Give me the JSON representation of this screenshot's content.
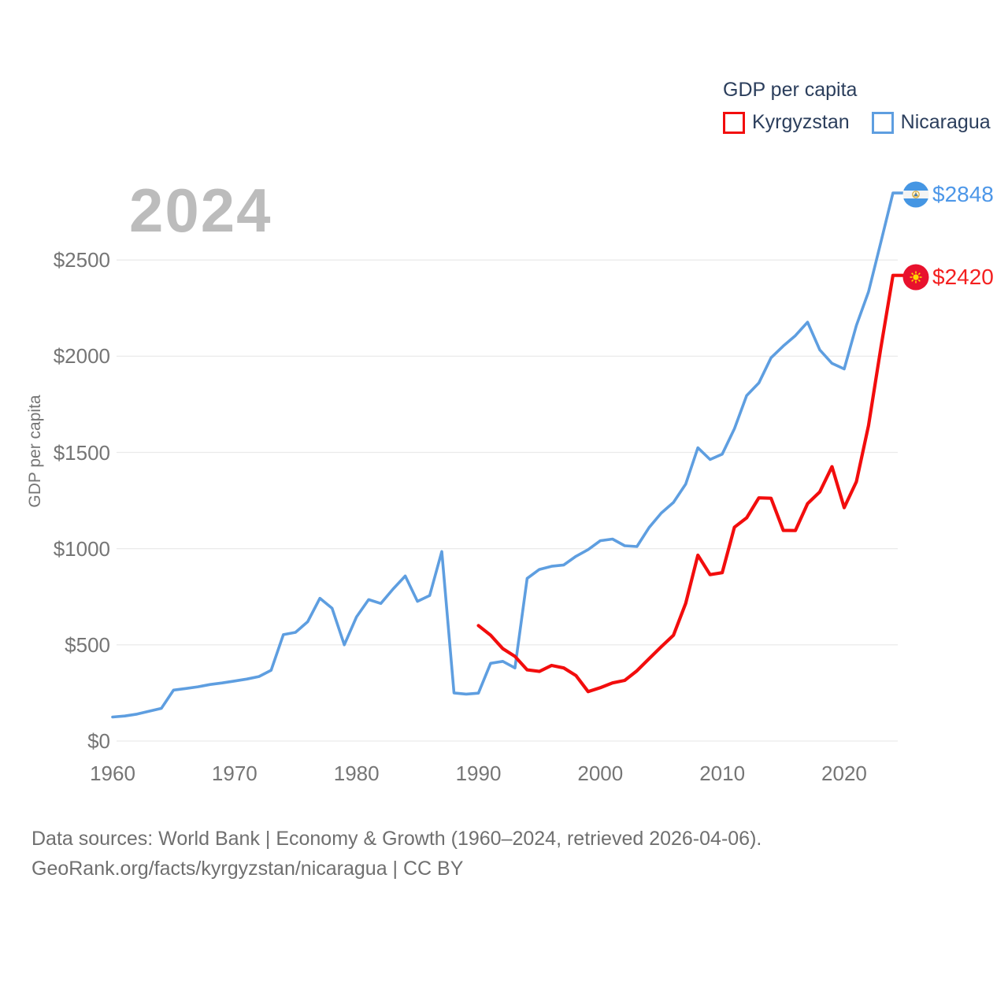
{
  "watermark_year": "2024",
  "legend": {
    "title": "GDP per capita",
    "series": [
      {
        "label": "Kyrgyzstan",
        "color": "#f20d0d"
      },
      {
        "label": "Nicaragua",
        "color": "#5e9ee0"
      }
    ]
  },
  "y_axis": {
    "title": "GDP per capita",
    "ticks": [
      "$0",
      "$500",
      "$1000",
      "$1500",
      "$2000",
      "$2500"
    ],
    "tick_values": [
      0,
      500,
      1000,
      1500,
      2000,
      2500
    ]
  },
  "x_axis": {
    "ticks": [
      "1960",
      "1970",
      "1980",
      "1990",
      "2000",
      "2010",
      "2020"
    ],
    "tick_values": [
      1960,
      1970,
      1980,
      1990,
      2000,
      2010,
      2020
    ]
  },
  "end_labels": [
    {
      "series": "Nicaragua",
      "value_label": "$2848",
      "flag": "nicaragua-flag",
      "color": "#4d97e8"
    },
    {
      "series": "Kyrgyzstan",
      "value_label": "$2420",
      "flag": "kyrgyzstan-flag",
      "color": "#f42020"
    }
  ],
  "footer": {
    "line1": "Data sources: World Bank | Economy & Growth (1960–2024, retrieved 2026-04-06).",
    "line2": "GeoRank.org/facts/kyrgyzstan/nicaragua | CC BY"
  },
  "chart_data": {
    "type": "line",
    "title": "GDP per capita",
    "xlabel": "",
    "ylabel": "GDP per capita",
    "xlim": [
      1960,
      2024
    ],
    "ylim": [
      0,
      2900
    ],
    "grid": "horizontal",
    "legend_position": "top-right",
    "x_start": 1960,
    "x_end": 2024,
    "series": [
      {
        "name": "Nicaragua",
        "color": "#5e9ee0",
        "start_year": 1960,
        "end_value": 2848,
        "values": [
          125,
          130,
          140,
          155,
          170,
          265,
          273,
          282,
          294,
          302,
          312,
          322,
          335,
          368,
          553,
          565,
          620,
          742,
          690,
          500,
          645,
          735,
          715,
          790,
          858,
          726,
          756,
          985,
          250,
          244,
          249,
          404,
          414,
          380,
          845,
          892,
          908,
          915,
          960,
          995,
          1041,
          1050,
          1015,
          1011,
          1110,
          1185,
          1240,
          1335,
          1524,
          1463,
          1491,
          1623,
          1795,
          1861,
          1992,
          2053,
          2107,
          2177,
          2033,
          1963,
          1934,
          2160,
          2335,
          2590,
          2848
        ]
      },
      {
        "name": "Kyrgyzstan",
        "color": "#f20d0d",
        "start_year": 1990,
        "end_value": 2420,
        "values": [
          600,
          550,
          480,
          440,
          370,
          362,
          393,
          380,
          340,
          257,
          277,
          302,
          315,
          365,
          428,
          490,
          550,
          715,
          966,
          865,
          875,
          1111,
          1160,
          1264,
          1262,
          1095,
          1094,
          1234,
          1295,
          1426,
          1213,
          1348,
          1640,
          2040,
          2420
        ]
      }
    ]
  }
}
